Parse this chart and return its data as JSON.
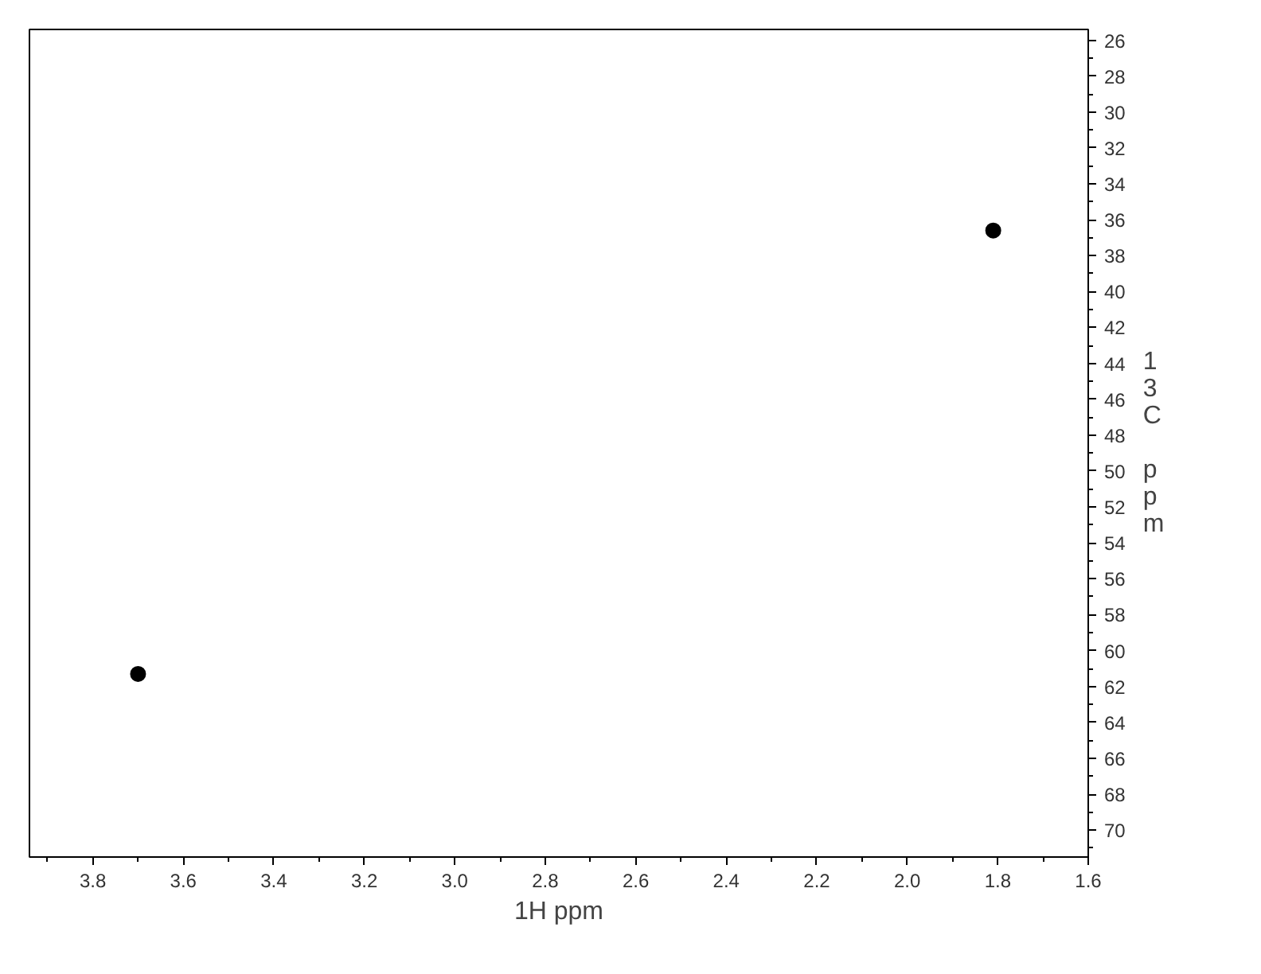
{
  "chart_data": {
    "type": "scatter",
    "xlabel": "1H ppm",
    "ylabel": "13C ppm",
    "x": [
      3.7,
      1.81
    ],
    "series": [
      {
        "color": "#000000",
        "values": [
          61.3,
          36.6
        ]
      }
    ],
    "marker": "circle",
    "grid": false,
    "xlim": [
      3.94,
      1.6
    ],
    "ylim": [
      71.5,
      25.4
    ],
    "xticks": [
      {
        "value": 3.9,
        "label": null
      },
      3.8,
      {
        "value": 3.7,
        "label": null
      },
      3.6,
      {
        "value": 3.5,
        "label": null
      },
      3.4,
      {
        "value": 3.3,
        "label": null
      },
      3.2,
      {
        "value": 3.1,
        "label": null
      },
      {
        "value": 3.0,
        "label": "3.0"
      },
      {
        "value": 2.9,
        "label": null
      },
      2.8,
      {
        "value": 2.7,
        "label": null
      },
      2.6,
      {
        "value": 2.5,
        "label": null
      },
      2.4,
      {
        "value": 2.3,
        "label": null
      },
      2.2,
      {
        "value": 2.1,
        "label": null
      },
      {
        "value": 2.0,
        "label": "2.0"
      },
      {
        "value": 1.9,
        "label": null
      },
      1.8,
      {
        "value": 1.7,
        "label": null
      },
      1.6
    ],
    "yticks": [
      26,
      {
        "value": 27,
        "label": null
      },
      28,
      {
        "value": 29,
        "label": null
      },
      30,
      {
        "value": 31,
        "label": null
      },
      32,
      {
        "value": 33,
        "label": null
      },
      34,
      {
        "value": 35,
        "label": null
      },
      36,
      {
        "value": 37,
        "label": null
      },
      38,
      {
        "value": 39,
        "label": null
      },
      40,
      {
        "value": 41,
        "label": null
      },
      42,
      {
        "value": 43,
        "label": null
      },
      44,
      {
        "value": 45,
        "label": null
      },
      46,
      {
        "value": 47,
        "label": null
      },
      48,
      {
        "value": 49,
        "label": null
      },
      50,
      {
        "value": 51,
        "label": null
      },
      52,
      {
        "value": 53,
        "label": null
      },
      54,
      {
        "value": 55,
        "label": null
      },
      56,
      {
        "value": 57,
        "label": null
      },
      58,
      {
        "value": 59,
        "label": null
      },
      60,
      {
        "value": 61,
        "label": null
      },
      62,
      {
        "value": 63,
        "label": null
      },
      64,
      {
        "value": 65,
        "label": null
      },
      66,
      {
        "value": 67,
        "label": null
      },
      68,
      {
        "value": 69,
        "label": null
      },
      70,
      {
        "value": 71,
        "label": null
      }
    ]
  }
}
